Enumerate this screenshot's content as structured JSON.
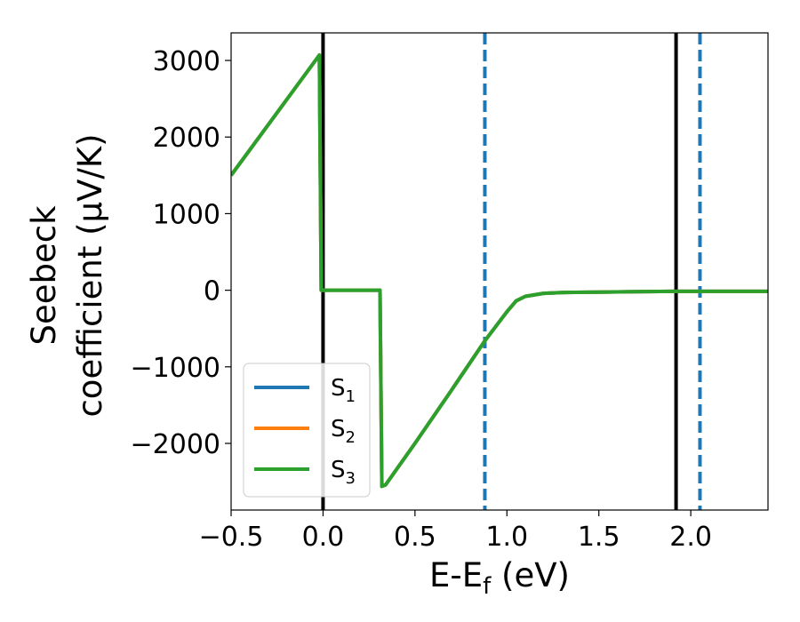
{
  "chart_data": {
    "type": "line",
    "xlabel": "E-E_f (eV)",
    "ylabel_line1": "Seebeck",
    "ylabel_line2": "coefficient  (μV/K)",
    "xlim": [
      -0.5,
      2.42
    ],
    "ylim": [
      -2870,
      3360
    ],
    "xticks": [
      -0.5,
      0.0,
      0.5,
      1.0,
      1.5,
      2.0
    ],
    "xtick_labels": [
      "−0.5",
      "0.0",
      "0.5",
      "1.0",
      "1.5",
      "2.0"
    ],
    "yticks": [
      -2000,
      -1000,
      0,
      1000,
      2000,
      3000
    ],
    "ytick_labels": [
      "−2000",
      "−1000",
      "0",
      "1000",
      "2000",
      "3000"
    ],
    "grid": false,
    "legend_position": "lower-left",
    "series": [
      {
        "name": "S1",
        "color": "#1f77b4",
        "x": [
          -0.5,
          -0.02,
          -0.01,
          0.0,
          0.31,
          0.32,
          0.34,
          0.5,
          0.7,
          0.88,
          1.0,
          1.05,
          1.1,
          1.2,
          1.3,
          1.5,
          1.7,
          1.9,
          2.1,
          2.42
        ],
        "y": [
          1500,
          3070,
          0,
          0,
          0,
          -2560,
          -2540,
          -2000,
          -1300,
          -660,
          -280,
          -140,
          -80,
          -40,
          -30,
          -25,
          -20,
          -15,
          -15,
          -15
        ]
      },
      {
        "name": "S2",
        "color": "#ff7f0e",
        "x": [
          -0.5,
          -0.02,
          -0.01,
          0.0,
          0.31,
          0.32,
          0.34,
          0.5,
          0.7,
          0.88,
          1.0,
          1.05,
          1.1,
          1.2,
          1.3,
          1.5,
          1.7,
          1.9,
          2.1,
          2.42
        ],
        "y": [
          1500,
          3070,
          0,
          0,
          0,
          -2560,
          -2540,
          -2000,
          -1300,
          -660,
          -280,
          -140,
          -80,
          -40,
          -30,
          -25,
          -20,
          -15,
          -15,
          -15
        ]
      },
      {
        "name": "S3",
        "color": "#2ca02c",
        "x": [
          -0.5,
          -0.02,
          -0.01,
          0.0,
          0.31,
          0.32,
          0.34,
          0.5,
          0.7,
          0.88,
          1.0,
          1.05,
          1.1,
          1.2,
          1.3,
          1.5,
          1.7,
          1.9,
          2.1,
          2.42
        ],
        "y": [
          1500,
          3070,
          0,
          0,
          0,
          -2560,
          -2540,
          -2000,
          -1300,
          -660,
          -280,
          -140,
          -80,
          -40,
          -30,
          -25,
          -20,
          -15,
          -15,
          -15
        ]
      }
    ],
    "vlines": [
      {
        "x": 0.0,
        "color": "#000000",
        "style": "solid"
      },
      {
        "x": 1.92,
        "color": "#000000",
        "style": "solid"
      },
      {
        "x": 0.88,
        "color": "#1f77b4",
        "style": "dashed"
      },
      {
        "x": 2.05,
        "color": "#1f77b4",
        "style": "dashed"
      }
    ]
  }
}
